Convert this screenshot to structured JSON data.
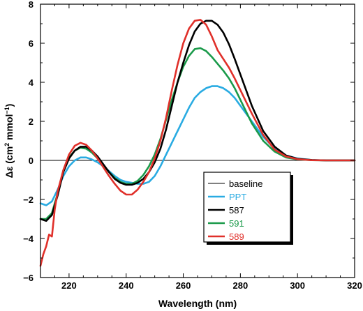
{
  "chart_data": {
    "type": "line",
    "xlabel": "Wavelength (nm)",
    "ylabel": {
      "prefix": "Δε (cm",
      "exp1": "2",
      "middle": " mmol",
      "exp2": "−1",
      "suffix": ")"
    },
    "xlim": [
      210,
      320
    ],
    "ylim": [
      -6,
      8
    ],
    "xticks": [
      220,
      240,
      260,
      280,
      300,
      320
    ],
    "yticks": [
      -6,
      -4,
      -2,
      0,
      2,
      4,
      6,
      8
    ],
    "grid": false,
    "legend_position": "bottom-right",
    "series": [
      {
        "name": "baseline",
        "color": "#000000",
        "label_color": "#000000",
        "x": [
          210,
          320
        ],
        "y": [
          0,
          0
        ]
      },
      {
        "name": "PPT",
        "color": "#29abe2",
        "label_color": "#29abe2",
        "x": [
          210,
          212,
          214,
          216,
          218,
          220,
          222,
          224,
          226,
          228,
          230,
          232,
          234,
          236,
          238,
          240,
          242,
          244,
          246,
          248,
          250,
          252,
          254,
          256,
          258,
          260,
          262,
          264,
          266,
          268,
          270,
          272,
          274,
          276,
          278,
          280,
          284,
          288,
          292,
          296,
          300,
          305,
          310,
          315,
          320
        ],
        "y": [
          -2.2,
          -2.3,
          -2.1,
          -1.5,
          -0.8,
          -0.3,
          0.0,
          0.15,
          0.15,
          0.05,
          -0.1,
          -0.3,
          -0.55,
          -0.8,
          -1.0,
          -1.1,
          -1.15,
          -1.2,
          -1.2,
          -1.1,
          -0.8,
          -0.3,
          0.3,
          0.9,
          1.5,
          2.1,
          2.7,
          3.2,
          3.5,
          3.7,
          3.8,
          3.8,
          3.7,
          3.5,
          3.2,
          2.8,
          2.0,
          1.2,
          0.6,
          0.25,
          0.1,
          0.02,
          0.0,
          0.0,
          0.0
        ]
      },
      {
        "name": "587",
        "color": "#000000",
        "label_color": "#000000",
        "x": [
          210,
          212,
          214,
          216,
          218,
          220,
          222,
          224,
          226,
          228,
          230,
          232,
          234,
          236,
          238,
          240,
          242,
          244,
          246,
          248,
          250,
          252,
          254,
          256,
          258,
          260,
          262,
          264,
          266,
          268,
          270,
          272,
          274,
          276,
          278,
          280,
          284,
          288,
          292,
          296,
          300,
          305,
          310,
          315,
          320
        ],
        "y": [
          -3.0,
          -3.1,
          -2.8,
          -1.8,
          -0.6,
          0.1,
          0.5,
          0.7,
          0.7,
          0.5,
          0.2,
          -0.2,
          -0.6,
          -0.95,
          -1.15,
          -1.25,
          -1.25,
          -1.15,
          -0.95,
          -0.6,
          -0.1,
          0.6,
          1.6,
          2.8,
          4.0,
          5.0,
          5.9,
          6.6,
          7.0,
          7.15,
          7.15,
          6.95,
          6.55,
          5.95,
          5.2,
          4.4,
          2.8,
          1.5,
          0.7,
          0.25,
          0.08,
          0.02,
          0.0,
          0.0,
          0.0
        ]
      },
      {
        "name": "591",
        "color": "#1a9a4a",
        "label_color": "#1a9a4a",
        "x": [
          210,
          212,
          214,
          216,
          218,
          220,
          222,
          224,
          226,
          228,
          230,
          232,
          234,
          236,
          238,
          240,
          242,
          244,
          246,
          248,
          250,
          252,
          254,
          256,
          258,
          260,
          262,
          264,
          266,
          268,
          270,
          272,
          274,
          276,
          278,
          280,
          284,
          288,
          292,
          296,
          300,
          305,
          310,
          315,
          320
        ],
        "y": [
          -3.0,
          -3.0,
          -2.7,
          -1.7,
          -0.5,
          0.15,
          0.5,
          0.65,
          0.6,
          0.4,
          0.1,
          -0.25,
          -0.6,
          -0.9,
          -1.1,
          -1.2,
          -1.2,
          -1.05,
          -0.75,
          -0.3,
          0.3,
          1.1,
          2.1,
          3.1,
          4.0,
          4.8,
          5.35,
          5.7,
          5.75,
          5.6,
          5.3,
          4.95,
          4.6,
          4.2,
          3.7,
          3.1,
          1.9,
          1.0,
          0.45,
          0.15,
          0.05,
          0.01,
          0.0,
          0.0,
          0.0
        ]
      },
      {
        "name": "589",
        "color": "#e0302a",
        "label_color": "#e0302a",
        "x": [
          210,
          211,
          212,
          213,
          214,
          215,
          216,
          218,
          220,
          222,
          224,
          226,
          228,
          230,
          232,
          234,
          236,
          238,
          240,
          242,
          244,
          246,
          248,
          250,
          252,
          254,
          256,
          258,
          260,
          262,
          264,
          266,
          268,
          270,
          272,
          274,
          276,
          278,
          280,
          284,
          288,
          292,
          296,
          300,
          305,
          310,
          315,
          320
        ],
        "y": [
          -5.4,
          -4.8,
          -4.4,
          -3.8,
          -3.9,
          -2.5,
          -1.6,
          -0.5,
          0.3,
          0.75,
          0.9,
          0.8,
          0.5,
          0.1,
          -0.35,
          -0.8,
          -1.2,
          -1.55,
          -1.75,
          -1.75,
          -1.5,
          -1.1,
          -0.6,
          0.1,
          1.0,
          2.2,
          3.6,
          4.9,
          6.0,
          6.75,
          7.15,
          7.2,
          6.95,
          6.35,
          5.65,
          5.2,
          4.75,
          4.2,
          3.6,
          2.4,
          1.3,
          0.55,
          0.2,
          0.06,
          0.01,
          0.0,
          0.0,
          0.0
        ]
      }
    ]
  }
}
